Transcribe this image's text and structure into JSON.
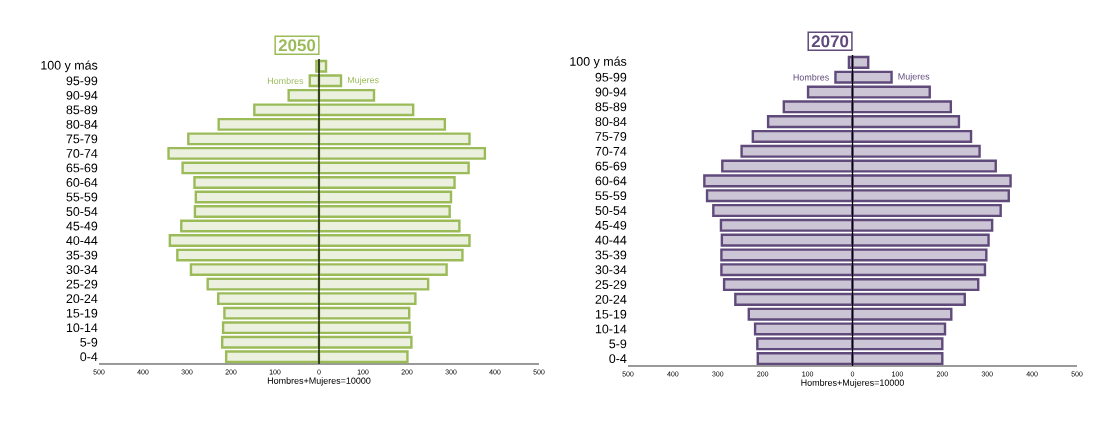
{
  "chart_data": [
    {
      "type": "bar",
      "orientation": "horizontal",
      "title": "2050",
      "xlabel": "Hombres+Mujeres=10000",
      "categories": [
        "100 y más",
        "95-99",
        "90-94",
        "85-89",
        "80-84",
        "75-79",
        "70-74",
        "65-69",
        "60-64",
        "55-59",
        "50-54",
        "45-49",
        "40-44",
        "35-39",
        "30-34",
        "25-29",
        "20-24",
        "15-19",
        "10-14",
        "5-9",
        "0-4"
      ],
      "series": [
        {
          "name": "Hombres",
          "color": "#9bbb59",
          "values": [
            -6,
            -21,
            -69,
            -147,
            -228,
            -297,
            -342,
            -310,
            -283,
            -280,
            -282,
            -313,
            -339,
            -322,
            -291,
            -253,
            -229,
            -215,
            -218,
            -220,
            -211
          ]
        },
        {
          "name": "Mujeres",
          "color": "#9bbb59",
          "values": [
            16,
            50,
            125,
            214,
            286,
            342,
            377,
            340,
            308,
            300,
            297,
            319,
            342,
            326,
            290,
            248,
            219,
            205,
            206,
            210,
            201
          ]
        }
      ],
      "xlim": [
        -500,
        500
      ],
      "xticks": [
        {
          "value": -500,
          "label": "500"
        },
        {
          "value": -400,
          "label": "400"
        },
        {
          "value": -300,
          "label": "300"
        },
        {
          "value": -200,
          "label": "200"
        },
        {
          "value": -100,
          "label": "100"
        },
        0,
        100,
        200,
        300,
        400,
        500
      ],
      "ref_lines": [
        {
          "axis": "x",
          "value": 0,
          "color": "#000000"
        }
      ],
      "stacked": true
    },
    {
      "type": "bar",
      "orientation": "horizontal",
      "title": "2070",
      "xlabel": "Hombres+Mujeres=10000",
      "categories": [
        "100 y más",
        "95-99",
        "90-94",
        "85-89",
        "80-84",
        "75-79",
        "70-74",
        "65-69",
        "60-64",
        "55-59",
        "50-54",
        "45-49",
        "40-44",
        "35-39",
        "30-34",
        "25-29",
        "20-24",
        "15-19",
        "10-14",
        "5-9",
        "0-4"
      ],
      "series": [
        {
          "name": "Hombres",
          "color": "#604a7b",
          "values": [
            -8,
            -38,
            -99,
            -153,
            -188,
            -222,
            -247,
            -290,
            -330,
            -324,
            -310,
            -293,
            -291,
            -292,
            -292,
            -286,
            -261,
            -231,
            -217,
            -212,
            -211
          ]
        },
        {
          "name": "Mujeres",
          "color": "#604a7b",
          "values": [
            35,
            87,
            172,
            219,
            237,
            264,
            283,
            319,
            352,
            348,
            330,
            311,
            303,
            298,
            295,
            280,
            250,
            220,
            206,
            200,
            200
          ]
        }
      ],
      "xlim": [
        -500,
        500
      ],
      "xticks": [
        {
          "value": -500,
          "label": "500"
        },
        {
          "value": -400,
          "label": "400"
        },
        {
          "value": -300,
          "label": "300"
        },
        {
          "value": -200,
          "label": "200"
        },
        {
          "value": -100,
          "label": "100"
        },
        0,
        100,
        200,
        300,
        400,
        500
      ],
      "ref_lines": [
        {
          "axis": "x",
          "value": 0,
          "color": "#000000"
        }
      ],
      "stacked": true
    }
  ]
}
